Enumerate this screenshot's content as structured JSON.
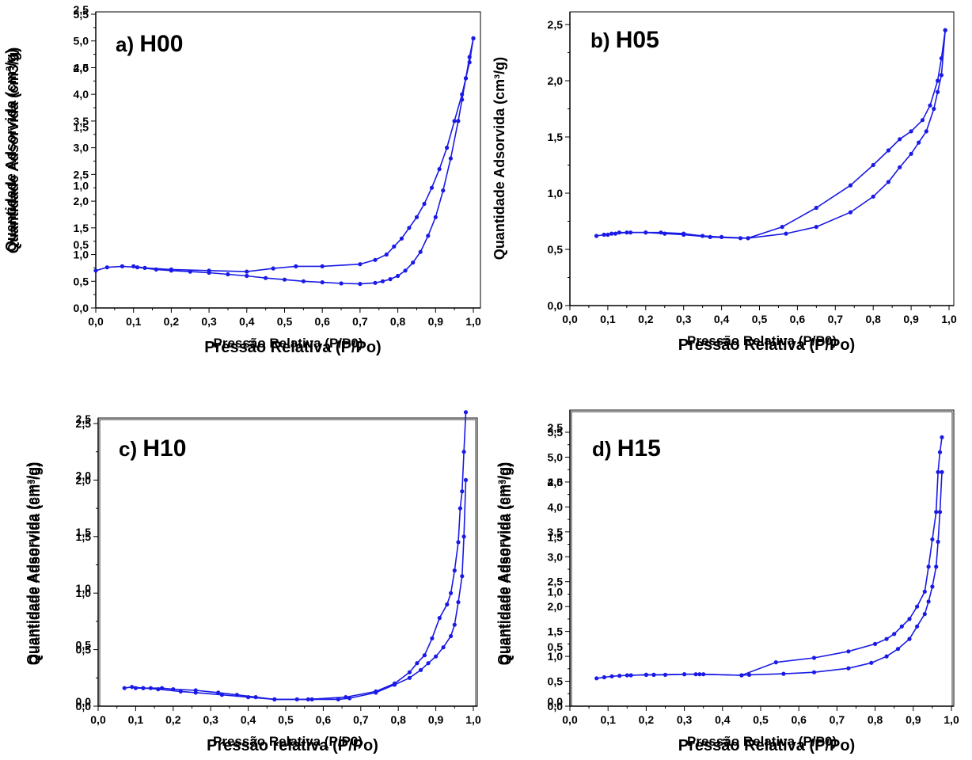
{
  "figure": {
    "panels_order": [
      "a",
      "b",
      "c",
      "d"
    ]
  },
  "chart_data": [
    {
      "id": "a",
      "type": "line",
      "title": "a) H00",
      "title_letter": "a)",
      "title_name": "H00",
      "xlabel_overlay": [
        "Pressão Relativa (P/P0)",
        "Pressão Relativa (P/Po)"
      ],
      "ylabel_overlay": [
        "Quantidade Adsorvida (cm³/g)",
        "Quantidade Adsorvida (cm3/g)"
      ],
      "xlim": [
        0,
        1.0
      ],
      "ylim": [
        0,
        5.5
      ],
      "x_ticks": [
        "0,0",
        "0,1",
        "0,2",
        "0,3",
        "0,4",
        "0,5",
        "0,6",
        "0,7",
        "0,8",
        "0,9",
        "1,0"
      ],
      "y_ticks_left": [
        "0,0",
        "0,5",
        "1,0",
        "1,5",
        "2,0",
        "2,5",
        "3,0",
        "3,5",
        "4,0",
        "4,5",
        "5,0",
        "5,5"
      ],
      "y_ticks_overlay": [
        "0,5",
        "1,0",
        "1,5",
        "2,0",
        "2,5"
      ],
      "color": "#1a1ae6",
      "series": [
        {
          "name": "",
          "x": [
            0.0,
            0.03,
            0.07,
            0.11,
            0.16,
            0.2,
            0.25,
            0.3,
            0.35,
            0.4,
            0.45,
            0.5,
            0.55,
            0.6,
            0.65,
            0.7,
            0.74,
            0.76,
            0.78,
            0.8,
            0.82,
            0.84,
            0.86,
            0.88,
            0.9,
            0.92,
            0.94,
            0.96,
            0.97,
            0.98,
            0.99,
            1.0
          ],
          "y": [
            0.7,
            0.76,
            0.78,
            0.76,
            0.72,
            0.7,
            0.68,
            0.66,
            0.63,
            0.6,
            0.56,
            0.53,
            0.5,
            0.48,
            0.46,
            0.45,
            0.47,
            0.5,
            0.54,
            0.6,
            0.7,
            0.85,
            1.05,
            1.35,
            1.7,
            2.2,
            2.8,
            3.5,
            3.9,
            4.3,
            4.7,
            5.05
          ]
        },
        {
          "name": "",
          "x": [
            1.0,
            0.99,
            0.98,
            0.97,
            0.95,
            0.93,
            0.91,
            0.89,
            0.87,
            0.85,
            0.83,
            0.81,
            0.79,
            0.77,
            0.74,
            0.7,
            0.6,
            0.53,
            0.47,
            0.4,
            0.3,
            0.2,
            0.13,
            0.1
          ],
          "y": [
            5.05,
            4.6,
            4.3,
            4.0,
            3.5,
            3.0,
            2.6,
            2.25,
            1.95,
            1.7,
            1.5,
            1.3,
            1.15,
            1.0,
            0.9,
            0.82,
            0.78,
            0.78,
            0.74,
            0.68,
            0.7,
            0.72,
            0.75,
            0.78
          ]
        }
      ]
    },
    {
      "id": "b",
      "type": "line",
      "title": "b) H05",
      "title_letter": "b)",
      "title_name": "H05",
      "xlabel_overlay": [
        "Pressão Relativa (P/P0)",
        "Pressão Relativa (P/Po)"
      ],
      "ylabel_overlay": [
        "Quantidade Adsorvida (cm³/g)"
      ],
      "xlim": [
        0,
        1.0
      ],
      "ylim": [
        0,
        2.5
      ],
      "x_ticks": [
        "0,0",
        "0,1",
        "0,2",
        "0,3",
        "0,4",
        "0,5",
        "0,6",
        "0,7",
        "0,8",
        "0,9",
        "1,0"
      ],
      "y_ticks_left": [
        "0,0",
        "0,5",
        "1,0",
        "1,5",
        "2,0",
        "2,5"
      ],
      "y_ticks_overlay": [],
      "color": "#1a1ae6",
      "series": [
        {
          "name": "",
          "x": [
            0.07,
            0.09,
            0.11,
            0.13,
            0.16,
            0.2,
            0.25,
            0.3,
            0.37,
            0.45,
            0.47,
            0.57,
            0.65,
            0.74,
            0.8,
            0.84,
            0.87,
            0.9,
            0.92,
            0.94,
            0.96,
            0.97,
            0.98,
            0.99
          ],
          "y": [
            0.62,
            0.63,
            0.64,
            0.65,
            0.65,
            0.65,
            0.64,
            0.63,
            0.61,
            0.6,
            0.6,
            0.64,
            0.7,
            0.83,
            0.97,
            1.1,
            1.23,
            1.35,
            1.45,
            1.55,
            1.75,
            1.9,
            2.05,
            2.45
          ]
        },
        {
          "name": "",
          "x": [
            0.99,
            0.98,
            0.97,
            0.95,
            0.93,
            0.9,
            0.87,
            0.84,
            0.8,
            0.74,
            0.65,
            0.56,
            0.47,
            0.4,
            0.35,
            0.3,
            0.24,
            0.2,
            0.15,
            0.12,
            0.1
          ],
          "y": [
            2.45,
            2.2,
            2.0,
            1.78,
            1.65,
            1.55,
            1.48,
            1.38,
            1.25,
            1.07,
            0.87,
            0.7,
            0.6,
            0.61,
            0.62,
            0.64,
            0.65,
            0.65,
            0.65,
            0.64,
            0.63
          ]
        }
      ]
    },
    {
      "id": "c",
      "type": "line",
      "title": "c) H10",
      "title_letter": "c)",
      "title_name": "H10",
      "xlabel_overlay": [
        "Pressão Relativa (P/P0)",
        "Pressão relativa (P/Po)"
      ],
      "ylabel_overlay": [
        "Quantidade Adsorvida (cm³/g)",
        "Quantidade Adsorvida (cm³/g)"
      ],
      "xlim": [
        0,
        1.0
      ],
      "ylim": [
        0,
        2.5
      ],
      "x_ticks": [
        "0,0",
        "0,1",
        "0,2",
        "0,3",
        "0,4",
        "0,5",
        "0,6",
        "0,7",
        "0,8",
        "0,9",
        "1,0"
      ],
      "y_ticks_left": [
        "0,0",
        "0,5",
        "1,0",
        "1,5",
        "2,0",
        "2,5"
      ],
      "y_ticks_overlay": [
        "0,0",
        "0,5",
        "1,0",
        "1,5",
        "2,0",
        "2,5"
      ],
      "color": "#1a1ae6",
      "series": [
        {
          "name": "",
          "x": [
            0.07,
            0.09,
            0.12,
            0.14,
            0.17,
            0.2,
            0.26,
            0.32,
            0.37,
            0.42,
            0.47,
            0.53,
            0.57,
            0.64,
            0.67,
            0.74,
            0.79,
            0.83,
            0.86,
            0.88,
            0.9,
            0.92,
            0.94,
            0.95,
            0.96,
            0.97,
            0.975,
            0.98
          ],
          "y": [
            0.16,
            0.17,
            0.16,
            0.16,
            0.16,
            0.15,
            0.14,
            0.12,
            0.1,
            0.08,
            0.06,
            0.06,
            0.06,
            0.06,
            0.07,
            0.12,
            0.19,
            0.25,
            0.32,
            0.38,
            0.44,
            0.52,
            0.62,
            0.72,
            0.92,
            1.15,
            1.5,
            2.0
          ]
        },
        {
          "name": "",
          "x": [
            0.98,
            0.975,
            0.97,
            0.965,
            0.96,
            0.95,
            0.94,
            0.93,
            0.91,
            0.89,
            0.87,
            0.85,
            0.83,
            0.79,
            0.74,
            0.66,
            0.56,
            0.47,
            0.4,
            0.33,
            0.26,
            0.22,
            0.16,
            0.12,
            0.1
          ],
          "y": [
            2.6,
            2.25,
            1.9,
            1.75,
            1.45,
            1.2,
            1.0,
            0.9,
            0.78,
            0.6,
            0.45,
            0.38,
            0.3,
            0.2,
            0.13,
            0.08,
            0.06,
            0.06,
            0.08,
            0.1,
            0.12,
            0.13,
            0.15,
            0.16,
            0.16
          ]
        }
      ]
    },
    {
      "id": "d",
      "type": "line",
      "title": "d) H15",
      "title_letter": "d)",
      "title_name": "H15",
      "xlabel_overlay": [
        "Pressão Relativa (P/P0)",
        "Pressão Relativa (P/Po)"
      ],
      "ylabel_overlay": [
        "Quantidade Adsorvida (cm³/g)",
        "Quantidade Adsorvida (cm³/g)"
      ],
      "xlim": [
        0,
        1.0
      ],
      "ylim": [
        0,
        5.5
      ],
      "x_ticks": [
        "0,0",
        "0,1",
        "0,2",
        "0,3",
        "0,4",
        "0,5",
        "0,6",
        "0,7",
        "0,8",
        "0,9",
        "1,0"
      ],
      "y_ticks_left": [
        "0,0",
        "0,5",
        "1,0",
        "1,5",
        "2,0",
        "2,5",
        "3,0",
        "3,5",
        "4,0",
        "4,5",
        "5,0",
        "5,5"
      ],
      "y_ticks_overlay": [
        "0,0",
        "0,5",
        "1,0",
        "1,5",
        "2,0",
        "2,5"
      ],
      "color": "#1a1ae6",
      "series": [
        {
          "name": "",
          "x": [
            0.07,
            0.09,
            0.11,
            0.13,
            0.16,
            0.2,
            0.22,
            0.25,
            0.3,
            0.33,
            0.35,
            0.45,
            0.47,
            0.56,
            0.64,
            0.73,
            0.79,
            0.83,
            0.86,
            0.89,
            0.91,
            0.93,
            0.94,
            0.95,
            0.96,
            0.965,
            0.97,
            0.975
          ],
          "y": [
            0.56,
            0.58,
            0.6,
            0.61,
            0.62,
            0.63,
            0.63,
            0.63,
            0.64,
            0.64,
            0.64,
            0.62,
            0.63,
            0.65,
            0.68,
            0.76,
            0.87,
            1.0,
            1.15,
            1.35,
            1.6,
            1.85,
            2.1,
            2.4,
            2.8,
            3.3,
            3.9,
            4.7
          ]
        },
        {
          "name": "",
          "x": [
            0.975,
            0.97,
            0.965,
            0.96,
            0.95,
            0.94,
            0.93,
            0.91,
            0.89,
            0.87,
            0.85,
            0.83,
            0.8,
            0.73,
            0.64,
            0.54,
            0.45,
            0.34,
            0.3,
            0.22,
            0.2,
            0.15
          ],
          "y": [
            5.4,
            5.1,
            4.7,
            3.9,
            3.35,
            2.8,
            2.3,
            2.0,
            1.75,
            1.6,
            1.45,
            1.35,
            1.25,
            1.1,
            0.97,
            0.88,
            0.62,
            0.64,
            0.64,
            0.63,
            0.63,
            0.62
          ]
        }
      ]
    }
  ]
}
